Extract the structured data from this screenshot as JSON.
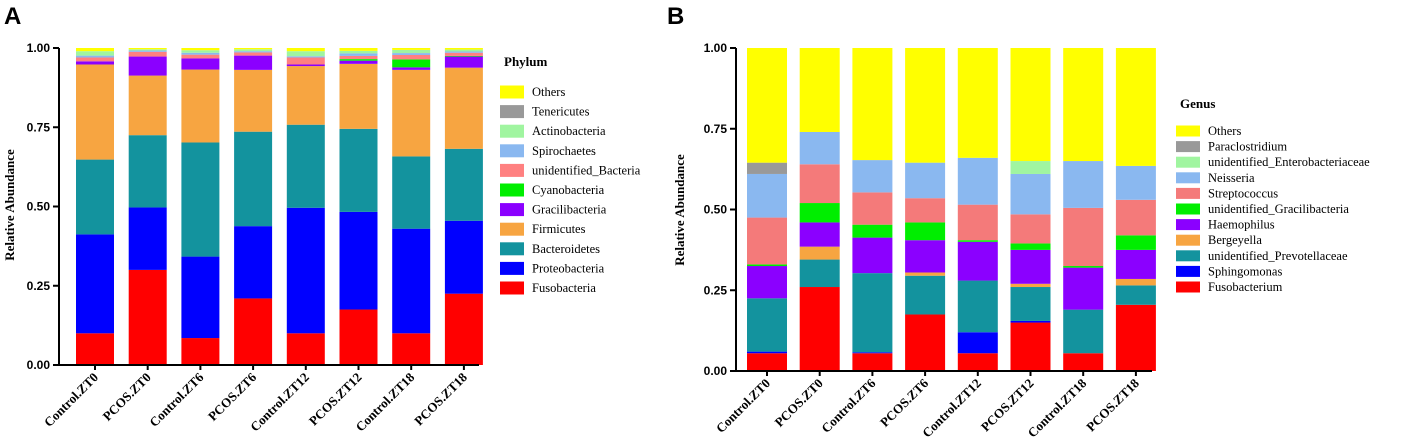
{
  "chart_data": [
    {
      "panel": "A",
      "type": "bar",
      "stacked": true,
      "ylabel": "Relative Abundance",
      "ylim": [
        0,
        1
      ],
      "yticks": [
        "0.00",
        "0.25",
        "0.50",
        "0.75",
        "1.00"
      ],
      "legend_title": "Phylum",
      "categories": [
        "Control.ZT0",
        "PCOS.ZT0",
        "Control.ZT6",
        "PCOS.ZT6",
        "Control.ZT12",
        "PCOS.ZT12",
        "Control.ZT18",
        "PCOS.ZT18"
      ],
      "series": [
        {
          "name": "Fusobacteria",
          "color": "#ff0000",
          "values": [
            0.1,
            0.3,
            0.085,
            0.21,
            0.1,
            0.175,
            0.1,
            0.225
          ]
        },
        {
          "name": "Proteobacteria",
          "color": "#0000ff",
          "values": [
            0.312,
            0.197,
            0.257,
            0.228,
            0.396,
            0.308,
            0.33,
            0.23
          ]
        },
        {
          "name": "Bacteroidetes",
          "color": "#13939e",
          "values": [
            0.236,
            0.228,
            0.36,
            0.298,
            0.262,
            0.262,
            0.228,
            0.227
          ]
        },
        {
          "name": "Firmicutes",
          "color": "#f7a541",
          "values": [
            0.3,
            0.188,
            0.23,
            0.195,
            0.185,
            0.205,
            0.273,
            0.256
          ]
        },
        {
          "name": "Gracilibacteria",
          "color": "#8b00ff",
          "values": [
            0.01,
            0.06,
            0.035,
            0.045,
            0.005,
            0.01,
            0.008,
            0.035
          ]
        },
        {
          "name": "Cyanobacteria",
          "color": "#00ee00",
          "values": [
            0.0,
            0.0,
            0.0,
            0.0,
            0.0,
            0.005,
            0.025,
            0.002
          ]
        },
        {
          "name": "unidentified_Bacteria",
          "color": "#ff8080",
          "values": [
            0.012,
            0.015,
            0.012,
            0.01,
            0.022,
            0.01,
            0.014,
            0.01
          ]
        },
        {
          "name": "Spirochaetes",
          "color": "#8ab8f0",
          "values": [
            0.006,
            0.004,
            0.006,
            0.004,
            0.004,
            0.008,
            0.006,
            0.004
          ]
        },
        {
          "name": "Actinobacteria",
          "color": "#a0f5a0",
          "values": [
            0.014,
            0.004,
            0.008,
            0.006,
            0.016,
            0.008,
            0.01,
            0.006
          ]
        },
        {
          "name": "Tenericutes",
          "color": "#999999",
          "values": [
            0.0,
            0.0,
            0.0,
            0.0,
            0.0,
            0.0,
            0.0,
            0.0
          ]
        },
        {
          "name": "Others",
          "color": "#ffff00",
          "values": [
            0.01,
            0.004,
            0.007,
            0.004,
            0.01,
            0.009,
            0.006,
            0.005
          ]
        }
      ]
    },
    {
      "panel": "B",
      "type": "bar",
      "stacked": true,
      "ylabel": "Relative Abundance",
      "ylim": [
        0,
        1
      ],
      "yticks": [
        "0.00",
        "0.25",
        "0.50",
        "0.75",
        "1.00"
      ],
      "legend_title": "Genus",
      "categories": [
        "Control.ZT0",
        "PCOS.ZT0",
        "Control.ZT6",
        "PCOS.ZT6",
        "Control.ZT12",
        "PCOS.ZT12",
        "Control.ZT18",
        "PCOS.ZT18"
      ],
      "series": [
        {
          "name": "Fusobacterium",
          "color": "#ff0000",
          "values": [
            0.055,
            0.26,
            0.055,
            0.175,
            0.055,
            0.15,
            0.055,
            0.205
          ]
        },
        {
          "name": "Sphingomonas",
          "color": "#0000ff",
          "values": [
            0.005,
            0.0,
            0.003,
            0.0,
            0.065,
            0.005,
            0.0,
            0.0
          ]
        },
        {
          "name": "unidentified_Prevotellaceae",
          "color": "#13939e",
          "values": [
            0.165,
            0.085,
            0.245,
            0.12,
            0.16,
            0.105,
            0.135,
            0.06
          ]
        },
        {
          "name": "Bergeyella",
          "color": "#f7a541",
          "values": [
            0.0,
            0.04,
            0.0,
            0.01,
            0.0,
            0.01,
            0.0,
            0.02
          ]
        },
        {
          "name": "Haemophilus",
          "color": "#8b00ff",
          "values": [
            0.1,
            0.075,
            0.11,
            0.1,
            0.12,
            0.105,
            0.13,
            0.09
          ]
        },
        {
          "name": "unidentified_Gracilibacteria",
          "color": "#00ee00",
          "values": [
            0.005,
            0.06,
            0.04,
            0.055,
            0.005,
            0.02,
            0.005,
            0.045
          ]
        },
        {
          "name": "Streptococcus",
          "color": "#f47a7a",
          "values": [
            0.145,
            0.12,
            0.1,
            0.075,
            0.11,
            0.09,
            0.18,
            0.11
          ]
        },
        {
          "name": "Neisseria",
          "color": "#8ab8f0",
          "values": [
            0.135,
            0.1,
            0.1,
            0.11,
            0.145,
            0.125,
            0.145,
            0.105
          ]
        },
        {
          "name": "unidentified_Enterobacteriaceae",
          "color": "#a0f5a0",
          "values": [
            0.0,
            0.0,
            0.0,
            0.0,
            0.0,
            0.04,
            0.0,
            0.0
          ]
        },
        {
          "name": "Paraclostridium",
          "color": "#999999",
          "values": [
            0.035,
            0.0,
            0.0,
            0.0,
            0.0,
            0.0,
            0.0,
            0.0
          ]
        },
        {
          "name": "Others",
          "color": "#ffff00",
          "values": [
            0.355,
            0.26,
            0.347,
            0.355,
            0.34,
            0.35,
            0.35,
            0.365
          ]
        }
      ]
    }
  ]
}
